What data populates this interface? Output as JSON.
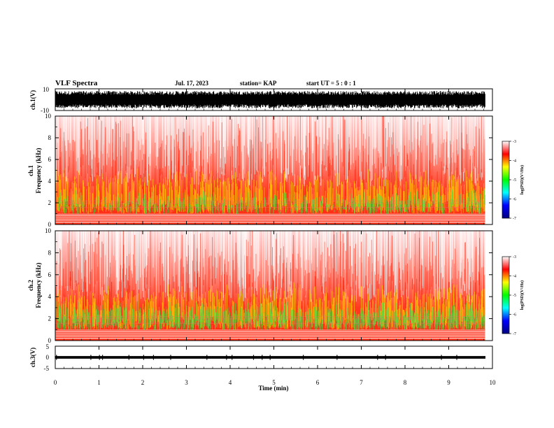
{
  "header": {
    "title": "VLF Spectra",
    "date": "Jul. 17, 2023",
    "station": "station= KAP",
    "start": "start UT =  5 : 0 : 1"
  },
  "chart_data": [
    {
      "type": "line",
      "name": "ch1-waveform",
      "ylabel": "ch.1(V)",
      "ylim": [
        -10,
        10
      ],
      "yticks": [
        "10",
        "-10"
      ],
      "xlim": [
        0,
        10
      ],
      "description_values": {
        "amplitude_range": [
          -8,
          8
        ]
      }
    },
    {
      "type": "heatmap",
      "name": "ch1-spectrogram",
      "ylabel": "ch.1\nFrequency (kHz)",
      "ylabel_line1": "ch.1",
      "ylabel_line2": "Frequency (kHz)",
      "ylim": [
        0,
        10
      ],
      "yticks": [
        "0",
        "2",
        "4",
        "6",
        "8",
        "10"
      ],
      "xlim": [
        0,
        9.83
      ],
      "colorbar": {
        "min": -7,
        "max": -3,
        "ticks": [
          "-3",
          "-4",
          "-5",
          "-6",
          "-7"
        ],
        "label": "log(PSD)(V²/Hz)",
        "colors": [
          "#000080",
          "#0000ff",
          "#00ffff",
          "#00ff00",
          "#ffff00",
          "#ff0000",
          "#ffffff"
        ]
      }
    },
    {
      "type": "heatmap",
      "name": "ch2-spectrogram",
      "ylabel_line1": "ch.2",
      "ylabel_line2": "Frequency (kHz)",
      "ylim": [
        0,
        10
      ],
      "yticks": [
        "0",
        "2",
        "4",
        "6",
        "8",
        "10"
      ],
      "xlim": [
        0,
        9.83
      ],
      "colorbar": {
        "min": -7,
        "max": -3,
        "ticks": [
          "-3",
          "-4",
          "-5",
          "-6",
          "-7"
        ],
        "label": "log(PSD)(V²/Hz)",
        "colors": [
          "#000080",
          "#0000ff",
          "#00ffff",
          "#00ff00",
          "#ffff00",
          "#ff0000",
          "#ffffff"
        ]
      }
    },
    {
      "type": "line",
      "name": "ch3-waveform",
      "ylabel": "ch.3(V)",
      "ylim": [
        -5,
        5
      ],
      "yticks": [
        "5",
        "0",
        "-5"
      ],
      "xlim": [
        0,
        10
      ],
      "description_values": {
        "amplitude_range": [
          -0.6,
          0.6
        ]
      }
    }
  ],
  "xaxis": {
    "label": "Time (min)",
    "ticks": [
      "0",
      "1",
      "2",
      "3",
      "4",
      "5",
      "6",
      "7",
      "8",
      "9",
      "10"
    ],
    "range": [
      0,
      10
    ]
  }
}
